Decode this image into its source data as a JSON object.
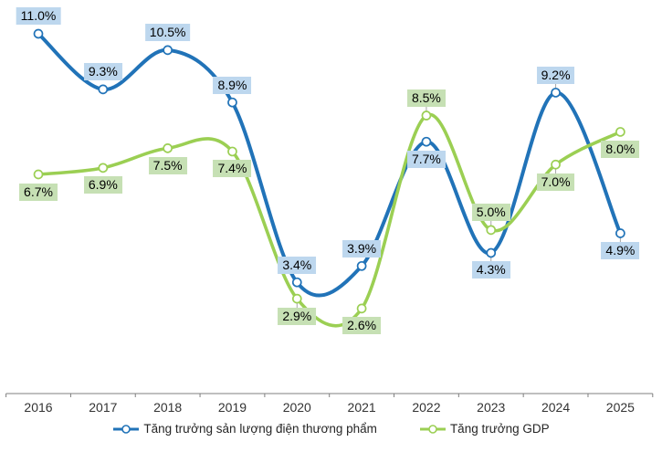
{
  "chart_data": {
    "type": "line",
    "smooth": true,
    "grid": false,
    "legend_position": "bottom",
    "marker": "circle-open-white",
    "categories": [
      "2016",
      "2017",
      "2018",
      "2019",
      "2020",
      "2021",
      "2022",
      "2023",
      "2024",
      "2025"
    ],
    "ylim": [
      0,
      12
    ],
    "axis_color": "#7f7f7f",
    "leader_color": "#a6a6a6",
    "series": [
      {
        "name": "Tăng trưởng sản lượng điện thương phẩm",
        "color": "#2173b8",
        "label_bg": "#bdd7ee",
        "values": [
          11.0,
          9.3,
          10.5,
          8.9,
          3.4,
          3.9,
          7.7,
          4.3,
          9.2,
          4.9
        ],
        "labels": [
          "11.0%",
          "9.3%",
          "10.5%",
          "8.9%",
          "3.4%",
          "3.9%",
          "7.7%",
          "4.3%",
          "9.2%",
          "4.9%"
        ],
        "label_pos": [
          "above",
          "above",
          "above",
          "above",
          "above",
          "above",
          "below",
          "below",
          "above",
          "below"
        ],
        "leader": [
          false,
          false,
          false,
          false,
          false,
          false,
          false,
          true,
          true,
          true
        ]
      },
      {
        "name": "Tăng trưởng GDP",
        "color": "#9bcf53",
        "label_bg": "#c6e0b4",
        "values": [
          6.7,
          6.9,
          7.5,
          7.4,
          2.9,
          2.6,
          8.5,
          5.0,
          7.0,
          8.0
        ],
        "labels": [
          "6.7%",
          "6.9%",
          "7.5%",
          "7.4%",
          "2.9%",
          "2.6%",
          "8.5%",
          "5.0%",
          "7.0%",
          "8.0%"
        ],
        "label_pos": [
          "below",
          "below",
          "below",
          "below",
          "below",
          "below",
          "above",
          "above",
          "below",
          "below"
        ],
        "leader": [
          false,
          false,
          false,
          false,
          true,
          false,
          true,
          true,
          true,
          false
        ]
      }
    ]
  }
}
